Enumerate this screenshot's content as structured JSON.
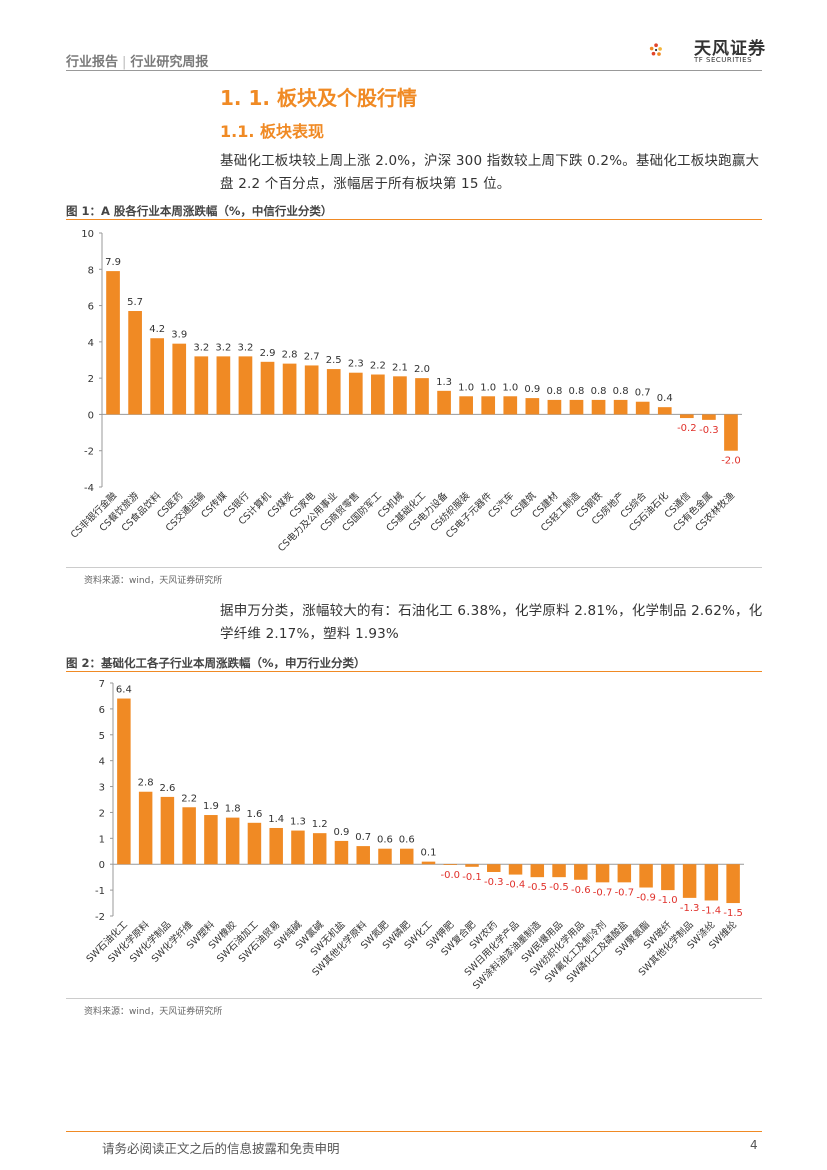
{
  "header": {
    "left_a": "行业报告",
    "left_b": "行业研究周报",
    "brand": "天风证券",
    "brand_sub": "TF SECURITIES"
  },
  "section": {
    "h1": "1. 1. 板块及个股行情",
    "h2": "1.1. 板块表现"
  },
  "paragraph1": "基础化工板块较上周上涨 2.0%，沪深 300 指数较上周下跌 0.2%。基础化工板块跑赢大盘 2.2 个百分点，涨幅居于所有板块第 15 位。",
  "paragraph2": "据申万分类，涨幅较大的有：石油化工 6.38%，化学原料 2.81%，化学制品 2.62%，化学纤维 2.17%，塑料 1.93%",
  "figure1": {
    "title": "图 1：A 股各行业本周涨跌幅（%，中信行业分类）",
    "source": "资料来源：wind，天风证券研究所"
  },
  "figure2": {
    "title": "图 2：基础化工各子行业本周涨跌幅（%，申万行业分类）",
    "source": "资料来源：wind，天风证券研究所"
  },
  "footer": {
    "disclaimer": "请务必阅读正文之后的信息披露和免责申明",
    "page": "4"
  },
  "chart_data": [
    {
      "type": "bar",
      "color": "#f08a24",
      "negative_label_color": "#e0312b",
      "ylim": [
        -4,
        10
      ],
      "yticks": [
        -4,
        -2,
        0,
        2,
        4,
        6,
        8,
        10
      ],
      "categories": [
        "CS非银行金融",
        "CS餐饮旅游",
        "CS食品饮料",
        "CS医药",
        "CS交通运输",
        "CS传媒",
        "CS银行",
        "CS计算机",
        "CS煤炭",
        "CS家电",
        "CS电力及公用事业",
        "CS商贸零售",
        "CS国防军工",
        "CS机械",
        "CS基础化工",
        "CS电力设备",
        "CS纺织服装",
        "CS电子元器件",
        "CS汽车",
        "CS建筑",
        "CS建材",
        "CS轻工制造",
        "CS钢铁",
        "CS房地产",
        "CS综合",
        "CS石油石化",
        "CS通信",
        "CS有色金属",
        "CS农林牧渔"
      ],
      "values": [
        7.9,
        5.7,
        4.2,
        3.9,
        3.2,
        3.2,
        3.2,
        2.9,
        2.8,
        2.7,
        2.5,
        2.3,
        2.2,
        2.1,
        2.0,
        1.3,
        1.0,
        1.0,
        1.0,
        0.9,
        0.8,
        0.8,
        0.8,
        0.8,
        0.7,
        0.4,
        -0.2,
        -0.3,
        -2.0
      ],
      "labels": [
        "7.9",
        "5.7",
        "4.2",
        "3.9",
        "3.2",
        "3.2",
        "3.2",
        "2.9",
        "2.8",
        "2.7",
        "2.5",
        "2.3",
        "2.2",
        "2.1",
        "2.0",
        "1.3",
        "1.0",
        "1.0",
        "1.0",
        "0.9",
        "0.8",
        "0.8",
        "0.8",
        "0.8",
        "0.7",
        "0.4",
        "-0.2",
        "-0.3",
        "-2.0"
      ]
    },
    {
      "type": "bar",
      "color": "#f08a24",
      "negative_label_color": "#e0312b",
      "ylim": [
        -2,
        7
      ],
      "yticks": [
        -2,
        -1,
        0,
        1,
        2,
        3,
        4,
        5,
        6,
        7
      ],
      "categories": [
        "SW石油化工",
        "SW化学原料",
        "SW化学制品",
        "SW化学纤维",
        "SW塑料",
        "SW橡胶",
        "SW石油加工",
        "SW石油贸易",
        "SW纯碱",
        "SW氯碱",
        "SW无机盐",
        "SW其他化学原料",
        "SW氮肥",
        "SW磷肥",
        "SW化工",
        "SW钾肥",
        "SW复合肥",
        "SW农药",
        "SW日用化学产品",
        "SW涂料油漆油墨制造",
        "SW民爆用品",
        "SW纺织化学用品",
        "SW氟化工及制冷剂",
        "SW磷化工及磷酸盐",
        "SW聚氨酯",
        "SW玻纤",
        "SW其他化学制品",
        "SW涤纶",
        "SW维纶"
      ],
      "values": [
        6.4,
        2.8,
        2.6,
        2.2,
        1.9,
        1.8,
        1.6,
        1.4,
        1.3,
        1.2,
        0.9,
        0.7,
        0.6,
        0.6,
        0.1,
        -0.03,
        -0.1,
        -0.3,
        -0.4,
        -0.5,
        -0.5,
        -0.6,
        -0.7,
        -0.7,
        -0.9,
        -1.0,
        -1.3,
        -1.4,
        -1.5
      ],
      "labels": [
        "6.4",
        "2.8",
        "2.6",
        "2.2",
        "1.9",
        "1.8",
        "1.6",
        "1.4",
        "1.3",
        "1.2",
        "0.9",
        "0.7",
        "0.6",
        "0.6",
        "0.1",
        "-0.0",
        "-0.1",
        "-0.3",
        "-0.4",
        "-0.5",
        "-0.5",
        "-0.6",
        "-0.7",
        "-0.7",
        "-0.9",
        "-1.0",
        "-1.3",
        "-1.4",
        "-1.5"
      ]
    }
  ]
}
